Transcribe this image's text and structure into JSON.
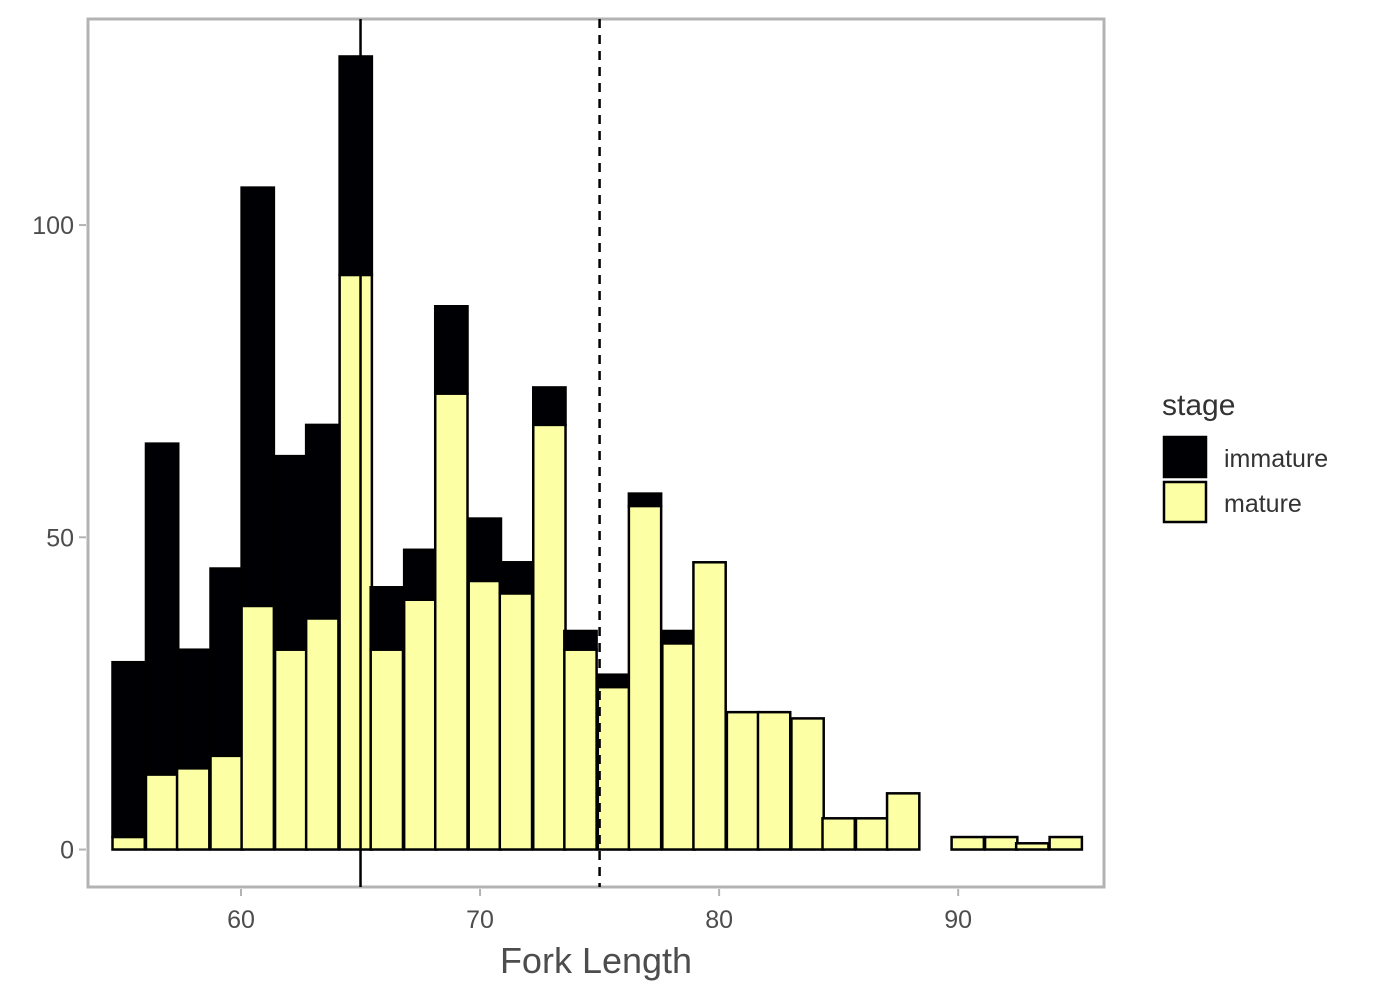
{
  "chart_data": {
    "type": "bar",
    "stacked": true,
    "title": "",
    "xlabel": "Fork Length",
    "ylabel": "",
    "xlim": [
      53.6,
      96.1
    ],
    "ylim": [
      -6,
      133
    ],
    "bin_width": 1.35,
    "x_ticks": [
      60,
      70,
      80,
      90
    ],
    "y_ticks": [
      0,
      50,
      100
    ],
    "grid": false,
    "legend": {
      "title": "stage",
      "position": "right",
      "entries": [
        {
          "label": "immature",
          "color": "#000004"
        },
        {
          "label": "mature",
          "color": "#FCFFA4"
        }
      ]
    },
    "reference_lines": [
      {
        "x": 65,
        "style": "solid"
      },
      {
        "x": 75,
        "style": "dashed"
      }
    ],
    "bins": [
      {
        "x": 55.3,
        "mature": 2,
        "immature": 28
      },
      {
        "x": 56.7,
        "mature": 12,
        "immature": 53
      },
      {
        "x": 58.0,
        "mature": 13,
        "immature": 19
      },
      {
        "x": 59.4,
        "mature": 15,
        "immature": 30
      },
      {
        "x": 60.7,
        "mature": 39,
        "immature": 67
      },
      {
        "x": 62.1,
        "mature": 32,
        "immature": 31
      },
      {
        "x": 63.4,
        "mature": 37,
        "immature": 31
      },
      {
        "x": 64.8,
        "mature": 92,
        "immature": 35
      },
      {
        "x": 66.1,
        "mature": 32,
        "immature": 10
      },
      {
        "x": 67.5,
        "mature": 40,
        "immature": 8
      },
      {
        "x": 68.8,
        "mature": 73,
        "immature": 14
      },
      {
        "x": 70.2,
        "mature": 43,
        "immature": 10
      },
      {
        "x": 71.5,
        "mature": 41,
        "immature": 5
      },
      {
        "x": 72.9,
        "mature": 68,
        "immature": 6
      },
      {
        "x": 74.2,
        "mature": 32,
        "immature": 3
      },
      {
        "x": 75.6,
        "mature": 26,
        "immature": 2
      },
      {
        "x": 76.9,
        "mature": 55,
        "immature": 2
      },
      {
        "x": 78.3,
        "mature": 33,
        "immature": 2
      },
      {
        "x": 79.6,
        "mature": 46,
        "immature": 0
      },
      {
        "x": 81.0,
        "mature": 22,
        "immature": 0
      },
      {
        "x": 82.3,
        "mature": 22,
        "immature": 0
      },
      {
        "x": 83.7,
        "mature": 21,
        "immature": 0
      },
      {
        "x": 85.0,
        "mature": 5,
        "immature": 0
      },
      {
        "x": 86.4,
        "mature": 5,
        "immature": 0
      },
      {
        "x": 87.7,
        "mature": 9,
        "immature": 0
      },
      {
        "x": 89.1,
        "mature": 0,
        "immature": 0
      },
      {
        "x": 90.4,
        "mature": 2,
        "immature": 0
      },
      {
        "x": 91.8,
        "mature": 2,
        "immature": 0
      },
      {
        "x": 93.1,
        "mature": 1,
        "immature": 0
      },
      {
        "x": 94.5,
        "mature": 2,
        "immature": 0
      }
    ]
  }
}
